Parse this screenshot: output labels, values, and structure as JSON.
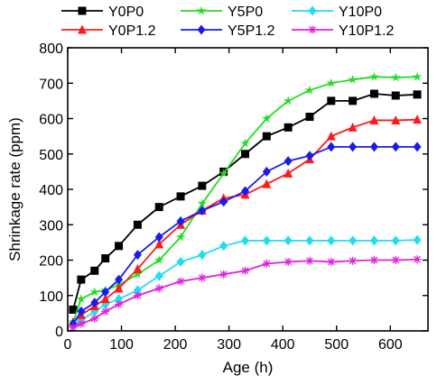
{
  "chart_data": {
    "type": "line",
    "xlabel": "Age (h)",
    "ylabel": "Shrinkage rate (ppm)",
    "xlim": [
      0,
      670
    ],
    "ylim": [
      0,
      800
    ],
    "xticks": [
      "0",
      "100",
      "200",
      "300",
      "400",
      "500",
      "600"
    ],
    "yticks": [
      "0",
      "100",
      "200",
      "300",
      "400",
      "500",
      "600",
      "700",
      "800"
    ],
    "grid": false,
    "legend_position": "top",
    "series": [
      {
        "name": "Y0P0",
        "color": "#000000",
        "marker": "square",
        "x": [
          10,
          25,
          50,
          70,
          95,
          130,
          170,
          210,
          250,
          290,
          330,
          370,
          410,
          450,
          490,
          530,
          570,
          610,
          650
        ],
        "y": [
          60,
          145,
          170,
          205,
          240,
          300,
          350,
          380,
          410,
          450,
          500,
          550,
          575,
          605,
          650,
          650,
          670,
          665,
          668
        ]
      },
      {
        "name": "Y5P0",
        "color": "#22dd22",
        "marker": "star",
        "x": [
          10,
          25,
          50,
          70,
          95,
          130,
          170,
          210,
          250,
          290,
          330,
          370,
          410,
          450,
          490,
          530,
          570,
          610,
          650
        ],
        "y": [
          25,
          90,
          110,
          115,
          130,
          160,
          200,
          265,
          360,
          445,
          530,
          600,
          650,
          680,
          700,
          710,
          718,
          716,
          718
        ]
      },
      {
        "name": "Y10P0",
        "color": "#22ddee",
        "marker": "diamond",
        "x": [
          10,
          25,
          50,
          70,
          95,
          130,
          170,
          210,
          250,
          290,
          330,
          370,
          410,
          450,
          490,
          530,
          570,
          610,
          650
        ],
        "y": [
          15,
          30,
          55,
          75,
          90,
          115,
          155,
          195,
          215,
          240,
          255,
          255,
          255,
          255,
          255,
          255,
          255,
          255,
          257
        ]
      },
      {
        "name": "Y0P1.2",
        "color": "#ff1a1a",
        "marker": "triangle",
        "x": [
          10,
          25,
          50,
          70,
          95,
          130,
          170,
          210,
          250,
          290,
          330,
          370,
          410,
          450,
          490,
          530,
          570,
          610,
          650
        ],
        "y": [
          25,
          45,
          70,
          90,
          120,
          175,
          245,
          300,
          340,
          375,
          385,
          415,
          445,
          485,
          550,
          575,
          595,
          595,
          597
        ]
      },
      {
        "name": "Y5P1.2",
        "color": "#1a1aee",
        "marker": "diamond",
        "x": [
          10,
          25,
          50,
          70,
          95,
          130,
          170,
          210,
          250,
          290,
          330,
          370,
          410,
          450,
          490,
          530,
          570,
          610,
          650
        ],
        "y": [
          20,
          55,
          80,
          110,
          145,
          215,
          265,
          310,
          340,
          365,
          395,
          450,
          480,
          495,
          520,
          520,
          520,
          520,
          520
        ]
      },
      {
        "name": "Y10P1.2",
        "color": "#dd22dd",
        "marker": "asterisk",
        "x": [
          10,
          25,
          50,
          70,
          95,
          130,
          170,
          210,
          250,
          290,
          330,
          370,
          410,
          450,
          490,
          530,
          570,
          610,
          650
        ],
        "y": [
          10,
          20,
          35,
          55,
          75,
          100,
          120,
          140,
          150,
          160,
          170,
          190,
          195,
          198,
          195,
          198,
          200,
          200,
          202
        ]
      }
    ]
  }
}
